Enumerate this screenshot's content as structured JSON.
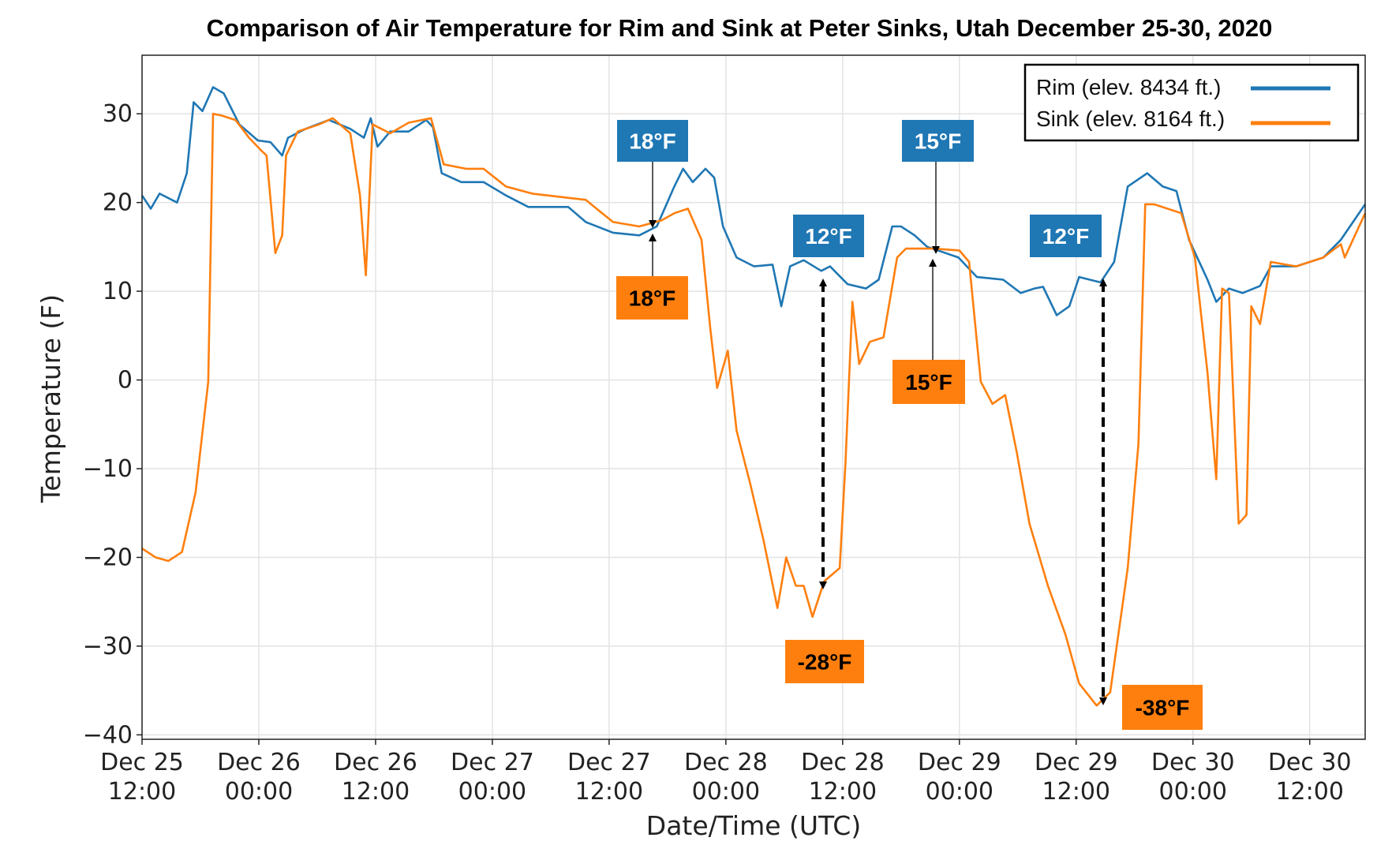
{
  "chart_data": {
    "type": "line",
    "title": "Comparison of Air Temperature for Rim and Sink at Peter Sinks, Utah December 25-30, 2020",
    "xlabel": "Date/Time (UTC)",
    "ylabel": "Temperature (F)",
    "xlim": [
      "2020-12-25T12:00",
      "2020-12-30T17:42"
    ],
    "ylim": [
      -40.5,
      36.6
    ],
    "grid": true,
    "legend_position": "top-right",
    "xticks": [
      {
        "t": "2020-12-25T12:00",
        "line1": "Dec 25",
        "line2": "12:00"
      },
      {
        "t": "2020-12-26T00:00",
        "line1": "Dec 26",
        "line2": "00:00"
      },
      {
        "t": "2020-12-26T12:00",
        "line1": "Dec 26",
        "line2": "12:00"
      },
      {
        "t": "2020-12-27T00:00",
        "line1": "Dec 27",
        "line2": "00:00"
      },
      {
        "t": "2020-12-27T12:00",
        "line1": "Dec 27",
        "line2": "12:00"
      },
      {
        "t": "2020-12-28T00:00",
        "line1": "Dec 28",
        "line2": "00:00"
      },
      {
        "t": "2020-12-28T12:00",
        "line1": "Dec 28",
        "line2": "12:00"
      },
      {
        "t": "2020-12-29T00:00",
        "line1": "Dec 29",
        "line2": "00:00"
      },
      {
        "t": "2020-12-29T12:00",
        "line1": "Dec 29",
        "line2": "12:00"
      },
      {
        "t": "2020-12-30T00:00",
        "line1": "Dec 30",
        "line2": "00:00"
      },
      {
        "t": "2020-12-30T12:00",
        "line1": "Dec 30",
        "line2": "12:00"
      }
    ],
    "yticks": [
      {
        "v": 30,
        "label": "30"
      },
      {
        "v": 20,
        "label": "20"
      },
      {
        "v": 10,
        "label": "10"
      },
      {
        "v": 0,
        "label": "0"
      },
      {
        "v": -10,
        "label": "−10"
      },
      {
        "v": -20,
        "label": "−20"
      },
      {
        "v": -30,
        "label": "−30"
      },
      {
        "v": -40,
        "label": "−40"
      }
    ],
    "series": [
      {
        "name": "Rim (elev. 8434 ft.)",
        "color": "#1f77b4",
        "points": [
          [
            "2020-12-25T12:00",
            20.8
          ],
          [
            "2020-12-25T12:54",
            19.3
          ],
          [
            "2020-12-25T13:48",
            21
          ],
          [
            "2020-12-25T15:36",
            20
          ],
          [
            "2020-12-25T16:36",
            23.3
          ],
          [
            "2020-12-25T17:18",
            31.3
          ],
          [
            "2020-12-25T18:12",
            30.3
          ],
          [
            "2020-12-25T19:18",
            33
          ],
          [
            "2020-12-25T20:24",
            32.3
          ],
          [
            "2020-12-25T22:00",
            28.8
          ],
          [
            "2020-12-25T23:54",
            27
          ],
          [
            "2020-12-26T01:12",
            26.8
          ],
          [
            "2020-12-26T02:24",
            25.3
          ],
          [
            "2020-12-26T03:00",
            27.3
          ],
          [
            "2020-12-26T04:48",
            28.3
          ],
          [
            "2020-12-26T07:12",
            29.3
          ],
          [
            "2020-12-26T09:24",
            28.3
          ],
          [
            "2020-12-26T10:48",
            27.3
          ],
          [
            "2020-12-26T11:30",
            29.5
          ],
          [
            "2020-12-26T12:12",
            26.3
          ],
          [
            "2020-12-26T13:30",
            28
          ],
          [
            "2020-12-26T15:24",
            28
          ],
          [
            "2020-12-26T17:12",
            29.3
          ],
          [
            "2020-12-26T17:54",
            28.5
          ],
          [
            "2020-12-26T18:48",
            23.3
          ],
          [
            "2020-12-26T20:48",
            22.3
          ],
          [
            "2020-12-26T23:06",
            22.3
          ],
          [
            "2020-12-27T01:24",
            20.8
          ],
          [
            "2020-12-27T03:42",
            19.5
          ],
          [
            "2020-12-27T07:48",
            19.5
          ],
          [
            "2020-12-27T09:36",
            17.8
          ],
          [
            "2020-12-27T12:24",
            16.6
          ],
          [
            "2020-12-27T15:06",
            16.3
          ],
          [
            "2020-12-27T16:54",
            17.3
          ],
          [
            "2020-12-27T18:42",
            21.8
          ],
          [
            "2020-12-27T19:36",
            23.8
          ],
          [
            "2020-12-27T20:36",
            22.3
          ],
          [
            "2020-12-27T21:54",
            23.8
          ],
          [
            "2020-12-27T22:48",
            22.8
          ],
          [
            "2020-12-27T23:42",
            17.3
          ],
          [
            "2020-12-28T01:06",
            13.8
          ],
          [
            "2020-12-28T02:54",
            12.8
          ],
          [
            "2020-12-28T04:48",
            13
          ],
          [
            "2020-12-28T05:42",
            8.3
          ],
          [
            "2020-12-28T06:36",
            12.8
          ],
          [
            "2020-12-28T08:00",
            13.5
          ],
          [
            "2020-12-28T09:48",
            12.3
          ],
          [
            "2020-12-28T10:42",
            12.8
          ],
          [
            "2020-12-28T12:30",
            10.8
          ],
          [
            "2020-12-28T14:24",
            10.3
          ],
          [
            "2020-12-28T15:42",
            11.3
          ],
          [
            "2020-12-28T17:06",
            17.3
          ],
          [
            "2020-12-28T18:00",
            17.3
          ],
          [
            "2020-12-28T19:24",
            16.3
          ],
          [
            "2020-12-28T20:42",
            15
          ],
          [
            "2020-12-28T22:36",
            14.3
          ],
          [
            "2020-12-28T23:54",
            13.8
          ],
          [
            "2020-12-29T01:48",
            11.6
          ],
          [
            "2020-12-29T04:30",
            11.3
          ],
          [
            "2020-12-29T06:18",
            9.8
          ],
          [
            "2020-12-29T07:42",
            10.3
          ],
          [
            "2020-12-29T08:36",
            10.5
          ],
          [
            "2020-12-29T10:00",
            7.3
          ],
          [
            "2020-12-29T11:18",
            8.3
          ],
          [
            "2020-12-29T12:18",
            11.6
          ],
          [
            "2020-12-29T14:30",
            11
          ],
          [
            "2020-12-29T15:54",
            13.3
          ],
          [
            "2020-12-29T17:18",
            21.8
          ],
          [
            "2020-12-29T19:18",
            23.3
          ],
          [
            "2020-12-29T20:54",
            21.8
          ],
          [
            "2020-12-29T22:18",
            21.3
          ],
          [
            "2020-12-29T23:36",
            15.8
          ],
          [
            "2020-12-30T01:30",
            11.3
          ],
          [
            "2020-12-30T02:24",
            8.8
          ],
          [
            "2020-12-30T03:42",
            10.3
          ],
          [
            "2020-12-30T05:06",
            9.8
          ],
          [
            "2020-12-30T06:54",
            10.6
          ],
          [
            "2020-12-30T08:00",
            12.8
          ],
          [
            "2020-12-30T10:36",
            12.8
          ],
          [
            "2020-12-30T13:24",
            13.8
          ],
          [
            "2020-12-30T15:12",
            15.8
          ],
          [
            "2020-12-30T17:42",
            19.8
          ]
        ]
      },
      {
        "name": "Sink (elev. 8164 ft.)",
        "color": "#ff7f0e",
        "points": [
          [
            "2020-12-25T12:00",
            -19
          ],
          [
            "2020-12-25T13:24",
            -20
          ],
          [
            "2020-12-25T14:42",
            -20.4
          ],
          [
            "2020-12-25T16:06",
            -19.4
          ],
          [
            "2020-12-25T17:30",
            -12.7
          ],
          [
            "2020-12-25T18:48",
            -0.2
          ],
          [
            "2020-12-25T19:18",
            30
          ],
          [
            "2020-12-25T20:12",
            29.8
          ],
          [
            "2020-12-25T21:36",
            29.3
          ],
          [
            "2020-12-25T23:00",
            27.3
          ],
          [
            "2020-12-26T00:18",
            25.8
          ],
          [
            "2020-12-26T00:48",
            25.3
          ],
          [
            "2020-12-26T01:42",
            14.3
          ],
          [
            "2020-12-26T02:24",
            16.3
          ],
          [
            "2020-12-26T02:48",
            25.3
          ],
          [
            "2020-12-26T04:00",
            28
          ],
          [
            "2020-12-26T06:12",
            28.8
          ],
          [
            "2020-12-26T07:36",
            29.5
          ],
          [
            "2020-12-26T09:24",
            27.8
          ],
          [
            "2020-12-26T10:24",
            20.8
          ],
          [
            "2020-12-26T11:00",
            11.8
          ],
          [
            "2020-12-26T11:42",
            28.8
          ],
          [
            "2020-12-26T13:30",
            27.8
          ],
          [
            "2020-12-26T15:24",
            29
          ],
          [
            "2020-12-26T17:42",
            29.5
          ],
          [
            "2020-12-26T19:00",
            24.3
          ],
          [
            "2020-12-26T21:18",
            23.8
          ],
          [
            "2020-12-26T23:06",
            23.8
          ],
          [
            "2020-12-27T01:24",
            21.8
          ],
          [
            "2020-12-27T04:06",
            21
          ],
          [
            "2020-12-27T09:36",
            20.3
          ],
          [
            "2020-12-27T12:24",
            17.8
          ],
          [
            "2020-12-27T15:06",
            17.3
          ],
          [
            "2020-12-27T17:24",
            18
          ],
          [
            "2020-12-27T18:42",
            18.8
          ],
          [
            "2020-12-27T20:06",
            19.3
          ],
          [
            "2020-12-27T21:30",
            15.8
          ],
          [
            "2020-12-27T22:24",
            5.8
          ],
          [
            "2020-12-27T23:06",
            -0.9
          ],
          [
            "2020-12-28T00:12",
            3.3
          ],
          [
            "2020-12-28T01:06",
            -5.7
          ],
          [
            "2020-12-28T02:30",
            -11.7
          ],
          [
            "2020-12-28T03:54",
            -18.2
          ],
          [
            "2020-12-28T05:18",
            -25.7
          ],
          [
            "2020-12-28T06:12",
            -20
          ],
          [
            "2020-12-28T07:12",
            -23.2
          ],
          [
            "2020-12-28T08:00",
            -23.2
          ],
          [
            "2020-12-28T08:54",
            -26.7
          ],
          [
            "2020-12-28T10:06",
            -22.7
          ],
          [
            "2020-12-28T11:42",
            -21.2
          ],
          [
            "2020-12-28T12:18",
            -9.2
          ],
          [
            "2020-12-28T13:00",
            8.8
          ],
          [
            "2020-12-28T13:42",
            1.8
          ],
          [
            "2020-12-28T14:48",
            4.3
          ],
          [
            "2020-12-28T16:12",
            4.8
          ],
          [
            "2020-12-28T17:36",
            13.8
          ],
          [
            "2020-12-28T18:30",
            14.8
          ],
          [
            "2020-12-28T21:18",
            14.8
          ],
          [
            "2020-12-29T00:00",
            14.6
          ],
          [
            "2020-12-29T01:00",
            13.3
          ],
          [
            "2020-12-29T02:12",
            -0.2
          ],
          [
            "2020-12-29T03:24",
            -2.7
          ],
          [
            "2020-12-29T04:42",
            -1.7
          ],
          [
            "2020-12-29T05:54",
            -8.2
          ],
          [
            "2020-12-29T07:12",
            -16.2
          ],
          [
            "2020-12-29T09:06",
            -23.2
          ],
          [
            "2020-12-29T10:54",
            -28.7
          ],
          [
            "2020-12-29T12:18",
            -34.2
          ],
          [
            "2020-12-29T14:06",
            -36.7
          ],
          [
            "2020-12-29T15:30",
            -35.2
          ],
          [
            "2020-12-29T17:18",
            -21.2
          ],
          [
            "2020-12-29T18:24",
            -7.2
          ],
          [
            "2020-12-29T19:06",
            19.8
          ],
          [
            "2020-12-29T20:00",
            19.8
          ],
          [
            "2020-12-29T22:48",
            18.8
          ],
          [
            "2020-12-30T00:12",
            13.8
          ],
          [
            "2020-12-30T01:30",
            0.8
          ],
          [
            "2020-12-30T02:24",
            -11.2
          ],
          [
            "2020-12-30T03:00",
            10.3
          ],
          [
            "2020-12-30T03:42",
            9.8
          ],
          [
            "2020-12-30T04:42",
            -16.2
          ],
          [
            "2020-12-30T05:30",
            -15.2
          ],
          [
            "2020-12-30T06:00",
            8.3
          ],
          [
            "2020-12-30T06:54",
            6.3
          ],
          [
            "2020-12-30T08:00",
            13.3
          ],
          [
            "2020-12-30T10:36",
            12.8
          ],
          [
            "2020-12-30T13:24",
            13.8
          ],
          [
            "2020-12-30T15:12",
            15.3
          ],
          [
            "2020-12-30T15:36",
            13.8
          ],
          [
            "2020-12-30T17:42",
            18.8
          ]
        ]
      }
    ],
    "annotations": [
      {
        "id": "rim-18",
        "label": "18°F",
        "color": "#1f77b4",
        "text_color": "#ffffff"
      },
      {
        "id": "sink-18",
        "label": "18°F",
        "color": "#ff7f0e",
        "text_color": "#000000"
      },
      {
        "id": "rim-12a",
        "label": "12°F",
        "color": "#1f77b4",
        "text_color": "#ffffff"
      },
      {
        "id": "rim-15",
        "label": "15°F",
        "color": "#1f77b4",
        "text_color": "#ffffff"
      },
      {
        "id": "sink-15",
        "label": "15°F",
        "color": "#ff7f0e",
        "text_color": "#000000"
      },
      {
        "id": "rim-12b",
        "label": "12°F",
        "color": "#1f77b4",
        "text_color": "#ffffff"
      },
      {
        "id": "sink-28",
        "label": "-28°F",
        "color": "#ff7f0e",
        "text_color": "#000000"
      },
      {
        "id": "sink-38",
        "label": "-38°F",
        "color": "#ff7f0e",
        "text_color": "#000000"
      }
    ]
  }
}
